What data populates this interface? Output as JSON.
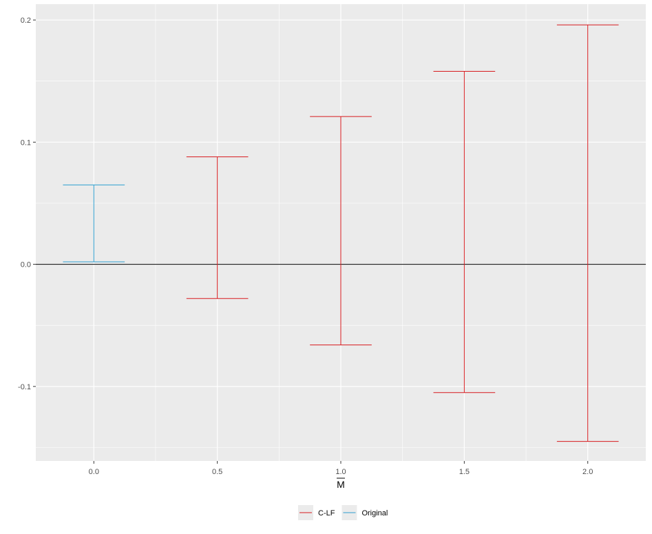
{
  "chart_data": {
    "type": "errorbar",
    "xlabel": "M",
    "xlabel_overline": true,
    "ylabel": "",
    "xlim": [
      -0.235,
      2.235
    ],
    "ylim": [
      -0.161,
      0.213
    ],
    "x_ticks": [
      0.0,
      0.5,
      1.0,
      1.5,
      2.0
    ],
    "x_tick_labels": [
      "0.0",
      "0.5",
      "1.0",
      "1.5",
      "2.0"
    ],
    "y_ticks": [
      -0.1,
      0.0,
      0.1,
      0.2
    ],
    "y_tick_labels": [
      "-0.1",
      "0.0",
      "0.1",
      "0.2"
    ],
    "hline_y": 0,
    "grid": true,
    "legend_position": "bottom",
    "series": [
      {
        "name": "C-LF",
        "color": "#d7191c",
        "points": [
          {
            "x": 0.5,
            "lower": -0.028,
            "upper": 0.088
          },
          {
            "x": 1.0,
            "lower": -0.066,
            "upper": 0.121
          },
          {
            "x": 1.5,
            "lower": -0.105,
            "upper": 0.158
          },
          {
            "x": 2.0,
            "lower": -0.145,
            "upper": 0.196
          }
        ]
      },
      {
        "name": "Original",
        "color": "#2c9ecf",
        "points": [
          {
            "x": 0.0,
            "lower": 0.002,
            "upper": 0.065
          }
        ]
      }
    ]
  }
}
